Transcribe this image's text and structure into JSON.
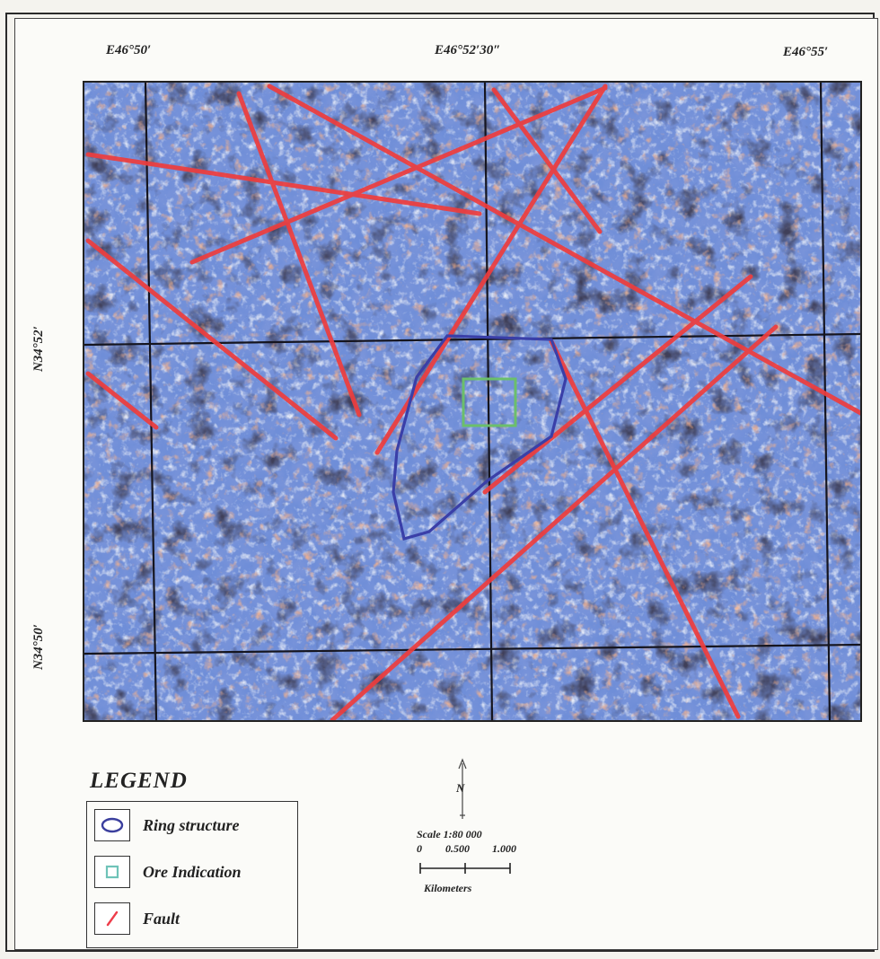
{
  "coordinates": {
    "top": [
      "E46°50′",
      "E46°52′30″",
      "E46°55′"
    ],
    "left": [
      "N34°52′",
      "N34°50′"
    ]
  },
  "legend": {
    "title": "LEGEND",
    "items": [
      {
        "label": "Ring structure",
        "icon": "ring-icon",
        "color": "#3b3f9e"
      },
      {
        "label": "Ore Indication",
        "icon": "square-icon",
        "color": "#6fc3b8"
      },
      {
        "label": "Fault",
        "icon": "fault-line-icon",
        "color": "#ee3d4a"
      }
    ]
  },
  "scale": {
    "north": "N",
    "label": "Scale 1:80 000",
    "ticks": [
      "0",
      "0.500",
      "1.000"
    ],
    "unit": "Kilometers"
  },
  "colors": {
    "fault": "#ee3d3d",
    "ring": "#3a3fa8",
    "ore": "#6bbf6b",
    "grid": "#1a1a2a"
  }
}
